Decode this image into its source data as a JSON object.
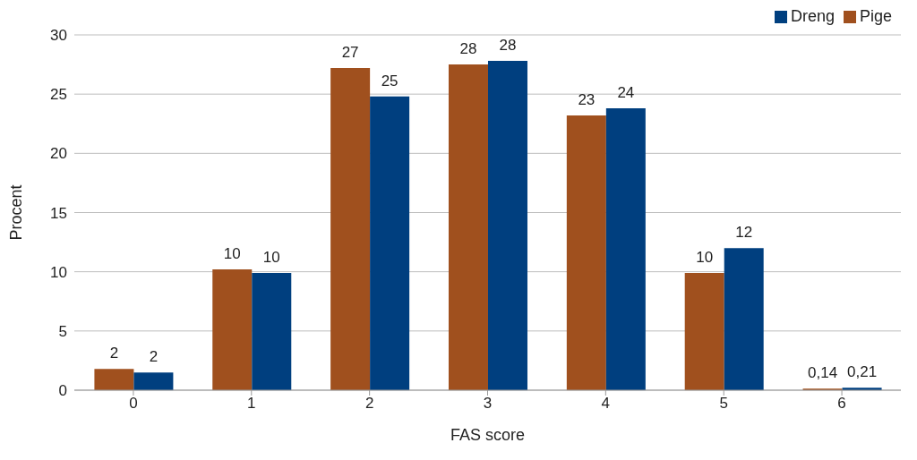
{
  "chart_data": {
    "type": "bar",
    "xlabel": "FAS score",
    "ylabel": "Procent",
    "categories": [
      "0",
      "1",
      "2",
      "3",
      "4",
      "5",
      "6"
    ],
    "series": [
      {
        "name": "Pige",
        "color": "#a0501e",
        "values": [
          1.8,
          10.2,
          27.2,
          27.5,
          23.2,
          9.9,
          0.14
        ],
        "value_labels": [
          "2",
          "10",
          "27",
          "28",
          "23",
          "10",
          "0,14"
        ]
      },
      {
        "name": "Dreng",
        "color": "#003f7f",
        "values": [
          1.5,
          9.9,
          24.8,
          27.8,
          23.8,
          12.0,
          0.21
        ],
        "value_labels": [
          "2",
          "10",
          "25",
          "28",
          "24",
          "12",
          "0,21"
        ]
      }
    ],
    "ylim": [
      0,
      30
    ],
    "yticks": [
      0,
      5,
      10,
      15,
      20,
      25,
      30
    ],
    "grid": "y",
    "legend": "top right"
  }
}
